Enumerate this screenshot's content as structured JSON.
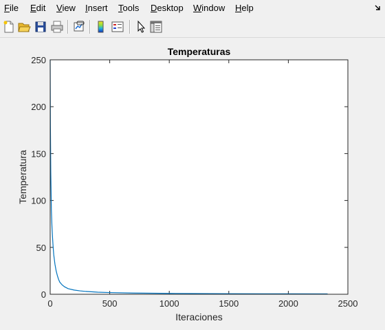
{
  "menu": {
    "items": [
      {
        "label": "File",
        "u": "F",
        "rest": "ile"
      },
      {
        "label": "Edit",
        "u": "E",
        "rest": "dit"
      },
      {
        "label": "View",
        "u": "V",
        "rest": "iew"
      },
      {
        "label": "Insert",
        "u": "I",
        "rest": "nsert"
      },
      {
        "label": "Tools",
        "u": "T",
        "rest": "ools"
      },
      {
        "label": "Desktop",
        "u": "D",
        "rest": "esktop"
      },
      {
        "label": "Window",
        "u": "W",
        "rest": "indow"
      },
      {
        "label": "Help",
        "u": "H",
        "rest": "elp"
      }
    ]
  },
  "toolbar": {
    "buttons": [
      {
        "name": "new-figure-button",
        "icon": "new-file-icon"
      },
      {
        "name": "open-file-button",
        "icon": "folder-open-icon"
      },
      {
        "name": "save-figure-button",
        "icon": "floppy-disk-icon"
      },
      {
        "name": "print-figure-button",
        "icon": "printer-icon"
      },
      {
        "name": "link-plot-button",
        "icon": "link-plot-icon"
      },
      {
        "name": "insert-colorbar-button",
        "icon": "colorbar-icon"
      },
      {
        "name": "insert-legend-button",
        "icon": "legend-icon"
      },
      {
        "name": "edit-plot-button",
        "icon": "pointer-arrow-icon"
      },
      {
        "name": "property-inspector-button",
        "icon": "property-panel-icon"
      }
    ]
  },
  "chart_data": {
    "type": "line",
    "title": "Temperaturas",
    "xlabel": "Iteraciones",
    "ylabel": "Temperatura",
    "xlim": [
      0,
      2500
    ],
    "ylim": [
      0,
      250
    ],
    "xticks": [
      0,
      500,
      1000,
      1500,
      2000,
      2500
    ],
    "yticks": [
      0,
      50,
      100,
      150,
      200,
      250
    ],
    "grid": false,
    "color": "#0072bd",
    "series": [
      {
        "x": [
          0,
          2,
          5,
          10,
          15,
          20,
          25,
          30,
          40,
          50,
          60,
          70,
          80,
          100,
          120,
          150,
          200,
          250,
          300,
          400,
          500,
          700,
          1000,
          1500,
          2000,
          2330
        ],
        "values": [
          250,
          180,
          130,
          90,
          72,
          60,
          50,
          42,
          32,
          25,
          20,
          16,
          13,
          10,
          8,
          6,
          4.5,
          3.6,
          3,
          2.2,
          1.8,
          1.3,
          0.9,
          0.6,
          0.45,
          0.4
        ]
      }
    ]
  }
}
